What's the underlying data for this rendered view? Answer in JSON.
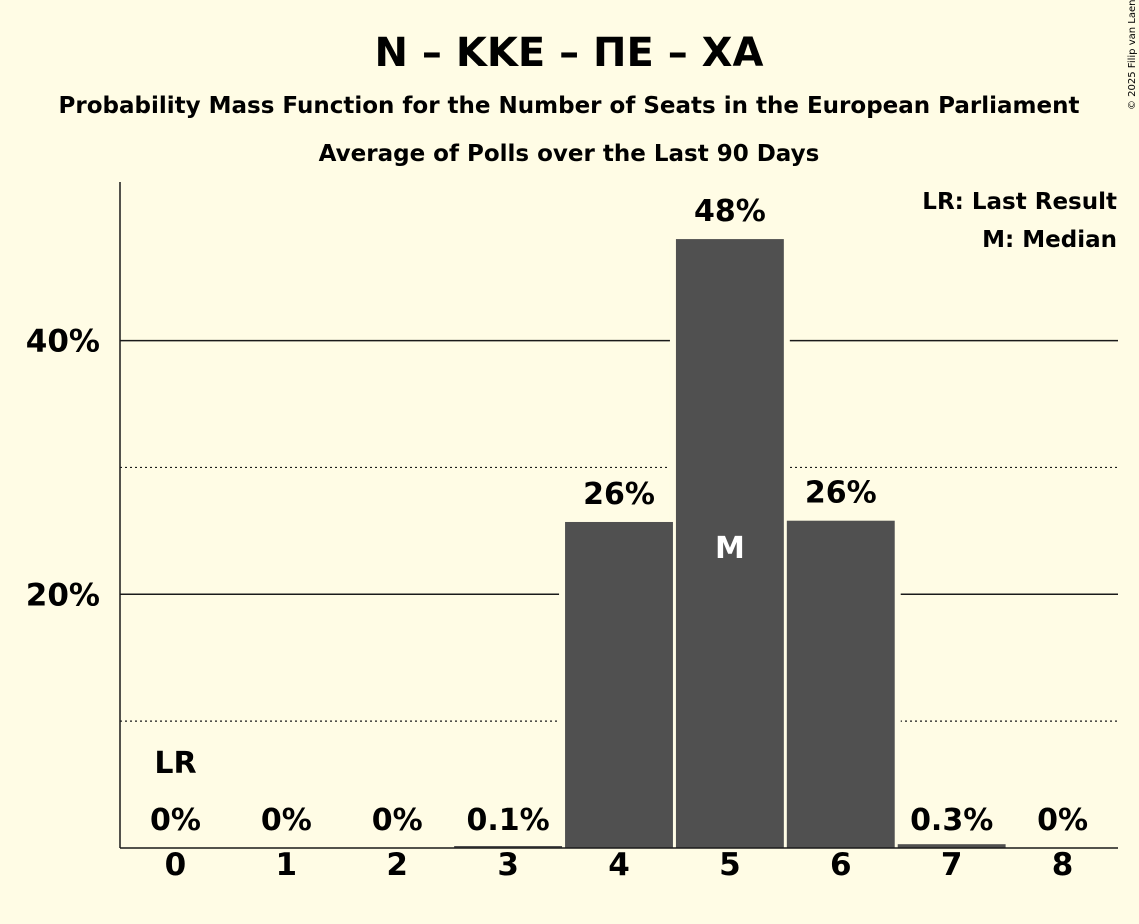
{
  "chart_data": {
    "type": "bar",
    "title": "N – KKE – ΠΕ – ΧΑ",
    "subtitle": "Probability Mass Function for the Number of Seats in the European Parliament",
    "subtitle2": "Average of Polls over the Last 90 Days",
    "categories": [
      "0",
      "1",
      "2",
      "3",
      "4",
      "5",
      "6",
      "7",
      "8"
    ],
    "values": [
      0,
      0,
      0,
      0.1,
      25.7,
      48.0,
      25.8,
      0.3,
      0
    ],
    "value_labels": [
      "0%",
      "0%",
      "0%",
      "0.1%",
      "26%",
      "48%",
      "26%",
      "0.3%",
      "0%"
    ],
    "ylim": [
      0,
      52.5
    ],
    "y_ticks_major": [
      20,
      40
    ],
    "y_ticks_major_labels": [
      "20%",
      "40%"
    ],
    "y_ticks_minor": [
      10,
      30
    ],
    "last_result_index": 0,
    "last_result_marker": "LR",
    "median_index": 5,
    "median_marker": "M",
    "legend": [
      "LR: Last Result",
      "M: Median"
    ],
    "legend_position": "top-right",
    "copyright": "© 2025 Filip van Laenen",
    "colors": {
      "background": "#fffce5",
      "bar": "#505050",
      "text": "#1a1a1a",
      "median_text": "#ffffff"
    }
  }
}
